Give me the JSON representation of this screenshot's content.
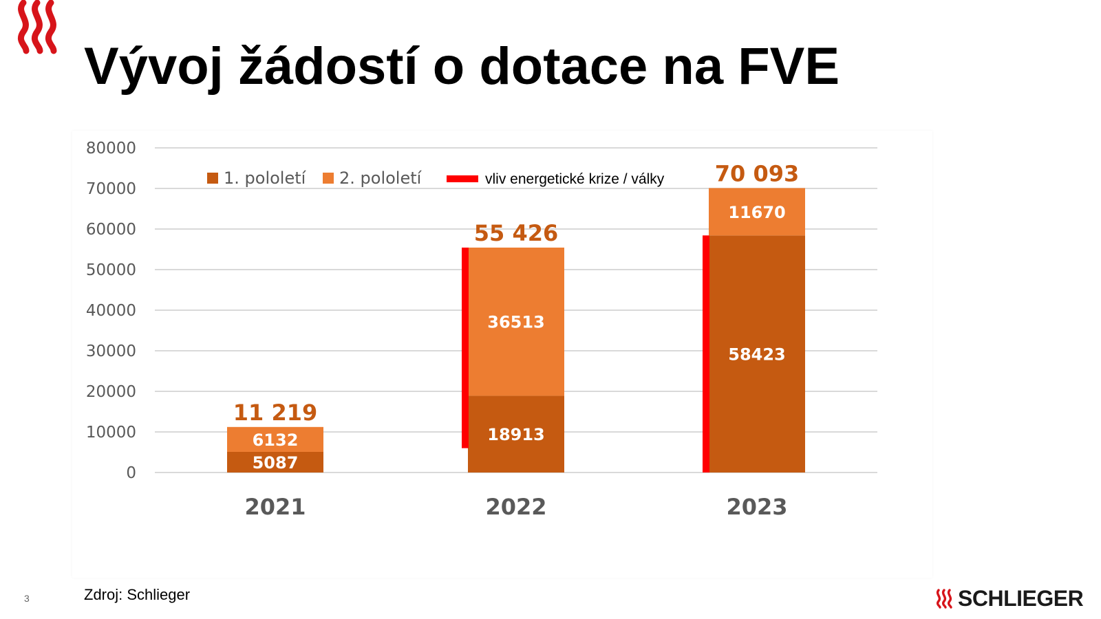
{
  "title": "Vývoj žádostí o dotace na FVE",
  "source": "Zdroj: Schlieger",
  "page_number": "3",
  "brand": {
    "name": "SCHLIEGER",
    "logo_icon": "heat-waves-icon"
  },
  "colors": {
    "h1": "#c55a11",
    "h2": "#ed7d31",
    "crisis": "#ff0000",
    "total_label": "#c55a11",
    "axis_text": "#595959",
    "grid": "#d9d9d9",
    "brand_red": "#d7141a"
  },
  "chart_data": {
    "type": "bar",
    "stacked": true,
    "title": "",
    "xlabel": "",
    "ylabel": "",
    "categories": [
      "2021",
      "2022",
      "2023"
    ],
    "series": [
      {
        "name": "1. pololetí",
        "values": [
          5087,
          18913,
          58423
        ]
      },
      {
        "name": "2. pololetí",
        "values": [
          6132,
          36513,
          11670
        ]
      }
    ],
    "totals": [
      "11 219",
      "55 426",
      "70 093"
    ],
    "crisis_marker": {
      "name": "vliv energetické krize / války",
      "ranges": [
        null,
        [
          6000,
          55426
        ],
        [
          0,
          58423
        ]
      ]
    },
    "ylim": [
      0,
      80000
    ],
    "yticks": [
      0,
      10000,
      20000,
      30000,
      40000,
      50000,
      60000,
      70000,
      80000
    ],
    "grid": true,
    "legend": "top"
  }
}
